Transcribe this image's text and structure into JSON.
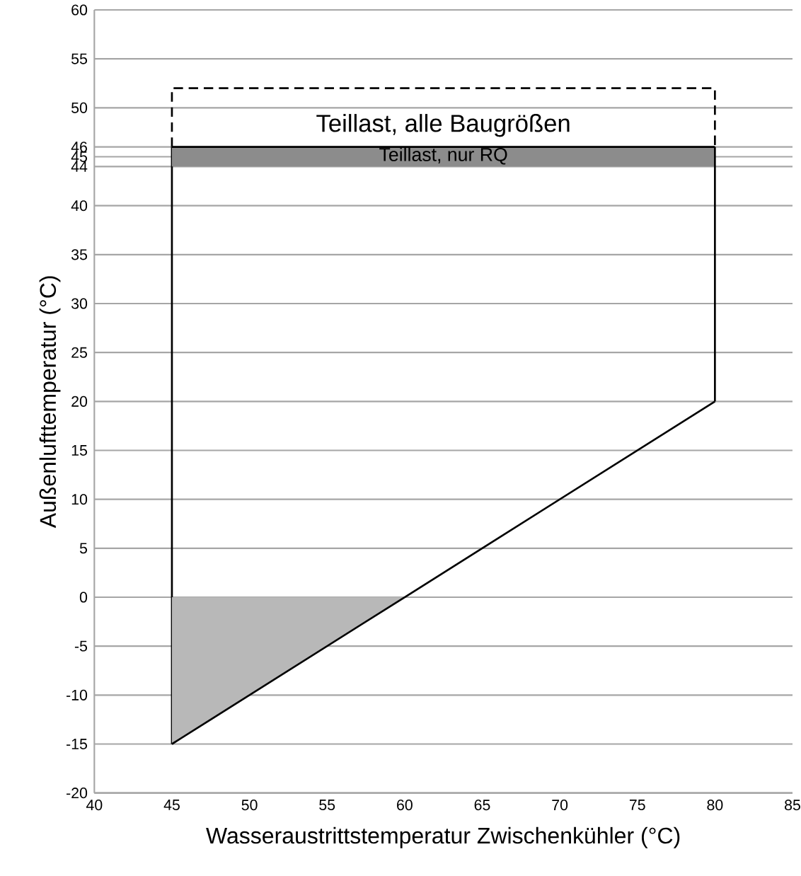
{
  "chart_data": {
    "type": "line",
    "xlabel": "Wasseraustrittstemperatur Zwischenkühler (°C)",
    "ylabel": "Außenlufttemperatur (°C)",
    "xlim": [
      40,
      85
    ],
    "xticks": [
      40,
      45,
      50,
      55,
      60,
      65,
      70,
      75,
      80,
      85
    ],
    "ylim": [
      -20,
      60
    ],
    "yticks": [
      -20,
      -15,
      -10,
      -5,
      0,
      5,
      10,
      15,
      20,
      25,
      30,
      35,
      40,
      44,
      45,
      46,
      50,
      55,
      60
    ],
    "grid": "y",
    "series": [
      {
        "color": "#000000",
        "line_style": "solid",
        "x": [
          45,
          45
        ],
        "values": [
          -15,
          46
        ]
      },
      {
        "color": "#000000",
        "line_style": "solid",
        "x": [
          45,
          80
        ],
        "values": [
          46,
          46
        ],
        "lower": [
          44,
          44
        ],
        "upper": [
          46,
          46
        ]
      },
      {
        "color": "#000000",
        "line_style": "solid",
        "x": [
          80,
          80
        ],
        "values": [
          46,
          20
        ]
      },
      {
        "color": "#000000",
        "line_style": "solid",
        "x": [
          45,
          60,
          80
        ],
        "values": [
          -15,
          0,
          20
        ],
        "lower": [
          -15,
          0,
          null
        ],
        "upper": [
          0,
          0,
          null
        ]
      },
      {
        "color": "#000000",
        "line_style": "dashed",
        "x": [
          45,
          45,
          80,
          80
        ],
        "values": [
          46,
          52,
          52,
          46
        ]
      }
    ],
    "annotations": [
      "Teillast, alle Baugrößen",
      "Teillast, nur RQ"
    ]
  }
}
